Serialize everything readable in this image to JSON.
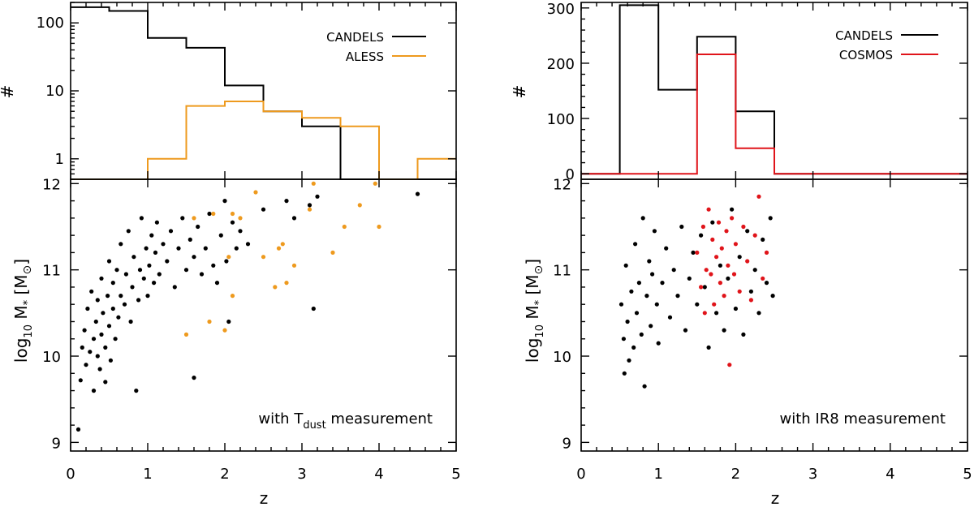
{
  "colors": {
    "candels": "#000000",
    "aless": "#ee9a1e",
    "cosmos": "#e0141a"
  },
  "panels": {
    "left": {
      "hist_ylabel": "#",
      "hist_yticks": [
        "1",
        "10",
        "100"
      ],
      "legend": [
        {
          "label": "CANDELS",
          "color": "#000000"
        },
        {
          "label": "ALESS",
          "color": "#ee9a1e"
        }
      ],
      "scatter_ylabel_prefix": "log",
      "scatter_ylabel_sub": "10",
      "scatter_ylabel_mid": " M",
      "scatter_ylabel_star": "*",
      "scatter_ylabel_unit": " [M",
      "scatter_ylabel_sun": "⊙",
      "scatter_ylabel_end": "]",
      "scatter_yticks": [
        "9",
        "10",
        "11",
        "12"
      ],
      "annotation_pre": "with T",
      "annotation_sub": "dust",
      "annotation_post": " measurement",
      "xlabel": "z",
      "xticks": [
        "0",
        "1",
        "2",
        "3",
        "4",
        "5"
      ]
    },
    "right": {
      "hist_ylabel": "#",
      "hist_yticks": [
        "0",
        "100",
        "200",
        "300"
      ],
      "legend": [
        {
          "label": "CANDELS",
          "color": "#000000"
        },
        {
          "label": "COSMOS",
          "color": "#e0141a"
        }
      ],
      "scatter_ylabel_prefix": "log",
      "scatter_ylabel_sub": "10",
      "scatter_ylabel_mid": " M",
      "scatter_ylabel_star": "*",
      "scatter_ylabel_unit": " [M",
      "scatter_ylabel_sun": "⊙",
      "scatter_ylabel_end": "]",
      "scatter_yticks": [
        "9",
        "10",
        "11",
        "12"
      ],
      "annotation": "with IR8 measurement",
      "xlabel": "z",
      "xticks": [
        "0",
        "1",
        "2",
        "3",
        "4",
        "5"
      ]
    }
  },
  "chart_data": [
    {
      "type": "bar",
      "panel": "left-histogram",
      "yscale": "log",
      "ylim": [
        0.5,
        200
      ],
      "xlim": [
        0,
        5
      ],
      "bin_edges": [
        0,
        0.5,
        1,
        1.5,
        2,
        2.5,
        3,
        3.5,
        4,
        4.5,
        5
      ],
      "series": [
        {
          "name": "CANDELS",
          "color": "#000000",
          "values": [
            170,
            150,
            60,
            43,
            12,
            5,
            3,
            0,
            0,
            0
          ]
        },
        {
          "name": "ALESS",
          "color": "#ee9a1e",
          "values": [
            0,
            0,
            1,
            6,
            7,
            5,
            4,
            3,
            0,
            1
          ]
        }
      ]
    },
    {
      "type": "scatter",
      "panel": "left-scatter",
      "xlim": [
        0,
        5
      ],
      "ylim": [
        8.9,
        12.05
      ],
      "xlabel": "z",
      "series": [
        {
          "name": "CANDELS",
          "color": "#000000",
          "points": [
            [
              0.1,
              9.15
            ],
            [
              0.13,
              9.72
            ],
            [
              0.15,
              10.1
            ],
            [
              0.18,
              10.3
            ],
            [
              0.2,
              9.9
            ],
            [
              0.22,
              10.55
            ],
            [
              0.25,
              10.05
            ],
            [
              0.27,
              10.75
            ],
            [
              0.3,
              9.6
            ],
            [
              0.3,
              10.2
            ],
            [
              0.33,
              10.4
            ],
            [
              0.35,
              10.0
            ],
            [
              0.35,
              10.65
            ],
            [
              0.38,
              9.85
            ],
            [
              0.4,
              10.9
            ],
            [
              0.4,
              10.25
            ],
            [
              0.42,
              10.5
            ],
            [
              0.45,
              9.7
            ],
            [
              0.45,
              10.1
            ],
            [
              0.48,
              10.7
            ],
            [
              0.5,
              10.35
            ],
            [
              0.5,
              11.1
            ],
            [
              0.52,
              9.95
            ],
            [
              0.55,
              10.55
            ],
            [
              0.55,
              10.85
            ],
            [
              0.58,
              10.2
            ],
            [
              0.6,
              11.0
            ],
            [
              0.62,
              10.45
            ],
            [
              0.65,
              10.7
            ],
            [
              0.65,
              11.3
            ],
            [
              0.7,
              10.6
            ],
            [
              0.72,
              10.95
            ],
            [
              0.75,
              11.45
            ],
            [
              0.78,
              10.4
            ],
            [
              0.8,
              10.8
            ],
            [
              0.82,
              11.15
            ],
            [
              0.85,
              9.6
            ],
            [
              0.88,
              10.65
            ],
            [
              0.9,
              11.0
            ],
            [
              0.92,
              11.6
            ],
            [
              0.95,
              10.9
            ],
            [
              0.98,
              11.25
            ],
            [
              1.0,
              10.7
            ],
            [
              1.02,
              11.05
            ],
            [
              1.05,
              11.4
            ],
            [
              1.08,
              10.85
            ],
            [
              1.1,
              11.2
            ],
            [
              1.12,
              11.55
            ],
            [
              1.15,
              10.95
            ],
            [
              1.2,
              11.3
            ],
            [
              1.25,
              11.1
            ],
            [
              1.3,
              11.45
            ],
            [
              1.35,
              10.8
            ],
            [
              1.4,
              11.25
            ],
            [
              1.45,
              11.6
            ],
            [
              1.5,
              11.0
            ],
            [
              1.55,
              11.35
            ],
            [
              1.6,
              11.15
            ],
            [
              1.6,
              9.75
            ],
            [
              1.65,
              11.5
            ],
            [
              1.7,
              10.95
            ],
            [
              1.75,
              11.25
            ],
            [
              1.8,
              11.65
            ],
            [
              1.85,
              11.05
            ],
            [
              1.9,
              10.85
            ],
            [
              1.95,
              11.4
            ],
            [
              2.0,
              11.8
            ],
            [
              2.02,
              11.1
            ],
            [
              2.05,
              10.4
            ],
            [
              2.1,
              11.55
            ],
            [
              2.15,
              11.25
            ],
            [
              2.2,
              11.45
            ],
            [
              2.3,
              11.3
            ],
            [
              2.5,
              11.7
            ],
            [
              2.8,
              11.8
            ],
            [
              2.9,
              11.6
            ],
            [
              3.1,
              11.75
            ],
            [
              3.15,
              10.55
            ],
            [
              3.2,
              11.85
            ],
            [
              4.5,
              11.88
            ]
          ]
        },
        {
          "name": "ALESS",
          "color": "#ee9a1e",
          "points": [
            [
              1.5,
              10.25
            ],
            [
              1.6,
              11.6
            ],
            [
              1.8,
              10.4
            ],
            [
              1.85,
              11.65
            ],
            [
              2.0,
              10.3
            ],
            [
              2.05,
              11.15
            ],
            [
              2.1,
              10.7
            ],
            [
              2.1,
              11.65
            ],
            [
              2.2,
              11.6
            ],
            [
              2.4,
              11.9
            ],
            [
              2.5,
              11.15
            ],
            [
              2.65,
              10.8
            ],
            [
              2.7,
              11.25
            ],
            [
              2.75,
              11.3
            ],
            [
              2.8,
              10.85
            ],
            [
              2.9,
              11.05
            ],
            [
              3.1,
              11.7
            ],
            [
              3.15,
              12.0
            ],
            [
              3.4,
              11.2
            ],
            [
              3.55,
              11.5
            ],
            [
              3.75,
              11.75
            ],
            [
              3.95,
              12.0
            ],
            [
              4.0,
              11.5
            ]
          ]
        }
      ]
    },
    {
      "type": "bar",
      "panel": "right-histogram",
      "ylim": [
        -10,
        310
      ],
      "xlim": [
        0,
        5
      ],
      "bin_edges": [
        0,
        0.5,
        1,
        1.5,
        2,
        2.5,
        3,
        3.5,
        4,
        4.5,
        5
      ],
      "series": [
        {
          "name": "CANDELS",
          "color": "#000000",
          "values": [
            0,
            305,
            152,
            248,
            113,
            0,
            0,
            0,
            0,
            0
          ]
        },
        {
          "name": "COSMOS",
          "color": "#e0141a",
          "values": [
            0,
            0,
            0,
            216,
            46,
            0,
            0,
            0,
            0,
            0
          ]
        }
      ]
    },
    {
      "type": "scatter",
      "panel": "right-scatter",
      "xlim": [
        0,
        5
      ],
      "ylim": [
        8.9,
        12.05
      ],
      "xlabel": "z",
      "series": [
        {
          "name": "CANDELS",
          "color": "#000000",
          "points": [
            [
              0.52,
              10.6
            ],
            [
              0.55,
              10.2
            ],
            [
              0.56,
              9.8
            ],
            [
              0.58,
              11.05
            ],
            [
              0.6,
              10.4
            ],
            [
              0.62,
              9.95
            ],
            [
              0.65,
              10.75
            ],
            [
              0.68,
              10.1
            ],
            [
              0.7,
              11.3
            ],
            [
              0.72,
              10.5
            ],
            [
              0.75,
              10.85
            ],
            [
              0.78,
              10.25
            ],
            [
              0.8,
              11.6
            ],
            [
              0.82,
              9.65
            ],
            [
              0.85,
              10.7
            ],
            [
              0.88,
              11.1
            ],
            [
              0.9,
              10.35
            ],
            [
              0.92,
              10.95
            ],
            [
              0.95,
              11.45
            ],
            [
              0.98,
              10.6
            ],
            [
              1.0,
              10.15
            ],
            [
              1.05,
              10.85
            ],
            [
              1.1,
              11.25
            ],
            [
              1.15,
              10.45
            ],
            [
              1.2,
              11.0
            ],
            [
              1.25,
              10.7
            ],
            [
              1.3,
              11.5
            ],
            [
              1.35,
              10.3
            ],
            [
              1.4,
              10.9
            ],
            [
              1.45,
              11.2
            ],
            [
              1.5,
              10.6
            ],
            [
              1.55,
              11.4
            ],
            [
              1.6,
              10.8
            ],
            [
              1.65,
              10.1
            ],
            [
              1.7,
              11.55
            ],
            [
              1.75,
              10.5
            ],
            [
              1.8,
              11.05
            ],
            [
              1.85,
              10.3
            ],
            [
              1.9,
              10.9
            ],
            [
              1.95,
              11.7
            ],
            [
              2.0,
              10.55
            ],
            [
              2.05,
              11.15
            ],
            [
              2.1,
              10.25
            ],
            [
              2.15,
              11.45
            ],
            [
              2.2,
              10.75
            ],
            [
              2.25,
              11.0
            ],
            [
              2.3,
              10.5
            ],
            [
              2.35,
              11.35
            ],
            [
              2.4,
              10.85
            ],
            [
              2.45,
              11.6
            ],
            [
              2.48,
              10.7
            ]
          ]
        },
        {
          "name": "COSMOS",
          "color": "#e0141a",
          "points": [
            [
              1.5,
              11.2
            ],
            [
              1.55,
              10.8
            ],
            [
              1.58,
              11.5
            ],
            [
              1.6,
              10.5
            ],
            [
              1.62,
              11.0
            ],
            [
              1.65,
              11.7
            ],
            [
              1.68,
              10.95
            ],
            [
              1.7,
              11.35
            ],
            [
              1.72,
              10.6
            ],
            [
              1.75,
              11.15
            ],
            [
              1.78,
              11.55
            ],
            [
              1.8,
              10.85
            ],
            [
              1.82,
              11.25
            ],
            [
              1.85,
              10.7
            ],
            [
              1.88,
              11.45
            ],
            [
              1.9,
              11.05
            ],
            [
              1.92,
              9.9
            ],
            [
              1.95,
              11.6
            ],
            [
              1.98,
              10.95
            ],
            [
              2.0,
              11.3
            ],
            [
              2.05,
              10.75
            ],
            [
              2.1,
              11.5
            ],
            [
              2.15,
              11.1
            ],
            [
              2.2,
              10.65
            ],
            [
              2.25,
              11.4
            ],
            [
              2.3,
              11.85
            ],
            [
              2.35,
              10.9
            ],
            [
              2.4,
              11.2
            ]
          ]
        }
      ]
    }
  ]
}
